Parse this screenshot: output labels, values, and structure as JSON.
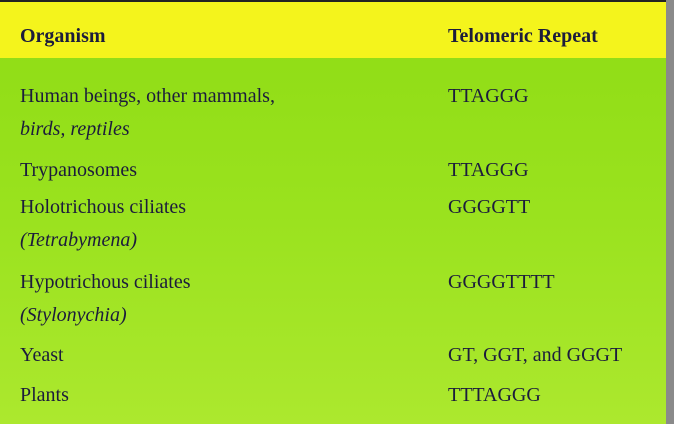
{
  "table": {
    "header": [
      "Organism",
      "Telomeric Repeat"
    ],
    "rows": [
      {
        "organism": [
          "Human beings, other mammals,",
          "birds, reptiles"
        ],
        "repeat": "TTAGGG"
      },
      {
        "organism": [
          "Trypanosomes"
        ],
        "repeat": "TTAGGG"
      },
      {
        "organism": [
          "Holotrichous ciliates",
          "(Tetrabymena)"
        ],
        "repeat": "GGGGTT"
      },
      {
        "organism": [
          "Hypotrichous ciliates",
          "(Stylonychia)"
        ],
        "repeat": "GGGGTTTT"
      },
      {
        "organism": [
          "Yeast"
        ],
        "repeat": "GT, GGT, and GGGT"
      },
      {
        "organism": [
          "Plants"
        ],
        "repeat": "TTTAGGG"
      }
    ]
  }
}
